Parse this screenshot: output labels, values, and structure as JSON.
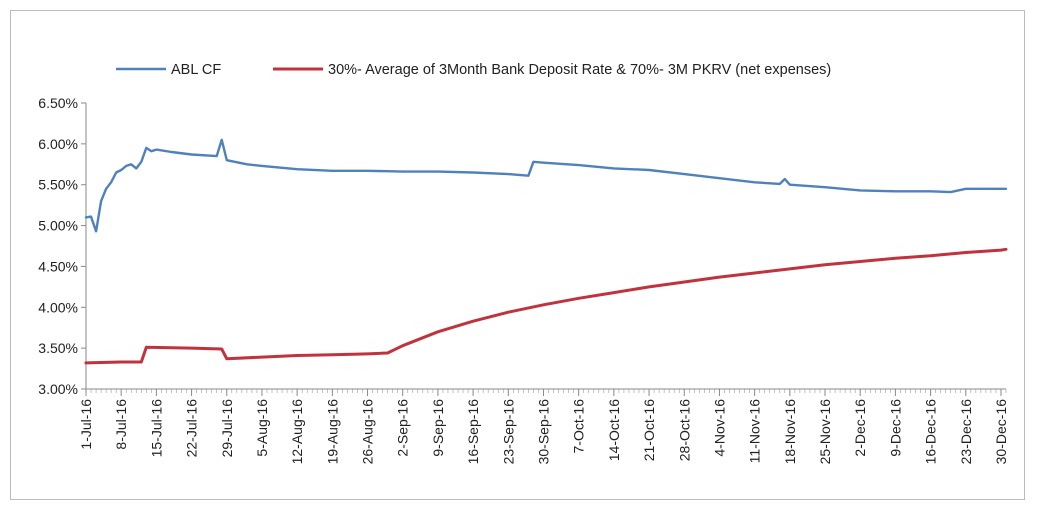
{
  "chart_data": {
    "type": "line",
    "title": "",
    "xlabel": "",
    "ylabel": "",
    "ylim": [
      0.03,
      0.065
    ],
    "y_ticks": [
      "3.00%",
      "3.50%",
      "4.00%",
      "4.50%",
      "5.00%",
      "5.50%",
      "6.00%",
      "6.50%"
    ],
    "x_ticks": [
      "1-Jul-16",
      "8-Jul-16",
      "15-Jul-16",
      "22-Jul-16",
      "29-Jul-16",
      "5-Aug-16",
      "12-Aug-16",
      "19-Aug-16",
      "26-Aug-16",
      "2-Sep-16",
      "9-Sep-16",
      "16-Sep-16",
      "23-Sep-16",
      "30-Sep-16",
      "7-Oct-16",
      "14-Oct-16",
      "21-Oct-16",
      "28-Oct-16",
      "4-Nov-16",
      "11-Nov-16",
      "18-Nov-16",
      "25-Nov-16",
      "2-Dec-16",
      "9-Dec-16",
      "16-Dec-16",
      "23-Dec-16",
      "30-Dec-16"
    ],
    "grid": false,
    "legend_position": "top",
    "series": [
      {
        "name": "ABL CF",
        "color": "#4f81bd",
        "points": [
          [
            "1-Jul-16",
            0.051
          ],
          [
            "2-Jul-16",
            0.0511
          ],
          [
            "3-Jul-16",
            0.0493
          ],
          [
            "4-Jul-16",
            0.053
          ],
          [
            "5-Jul-16",
            0.0545
          ],
          [
            "6-Jul-16",
            0.0553
          ],
          [
            "7-Jul-16",
            0.0565
          ],
          [
            "8-Jul-16",
            0.0568
          ],
          [
            "9-Jul-16",
            0.0573
          ],
          [
            "10-Jul-16",
            0.0575
          ],
          [
            "11-Jul-16",
            0.057
          ],
          [
            "12-Jul-16",
            0.0578
          ],
          [
            "13-Jul-16",
            0.0595
          ],
          [
            "14-Jul-16",
            0.0591
          ],
          [
            "15-Jul-16",
            0.0593
          ],
          [
            "18-Jul-16",
            0.059
          ],
          [
            "22-Jul-16",
            0.0587
          ],
          [
            "27-Jul-16",
            0.0585
          ],
          [
            "28-Jul-16",
            0.0605
          ],
          [
            "29-Jul-16",
            0.058
          ],
          [
            "2-Aug-16",
            0.0575
          ],
          [
            "5-Aug-16",
            0.0573
          ],
          [
            "12-Aug-16",
            0.0569
          ],
          [
            "19-Aug-16",
            0.0567
          ],
          [
            "26-Aug-16",
            0.0567
          ],
          [
            "2-Sep-16",
            0.0566
          ],
          [
            "9-Sep-16",
            0.0566
          ],
          [
            "16-Sep-16",
            0.0565
          ],
          [
            "23-Sep-16",
            0.0563
          ],
          [
            "27-Sep-16",
            0.0561
          ],
          [
            "28-Sep-16",
            0.0578
          ],
          [
            "30-Sep-16",
            0.0577
          ],
          [
            "7-Oct-16",
            0.0574
          ],
          [
            "14-Oct-16",
            0.057
          ],
          [
            "21-Oct-16",
            0.0568
          ],
          [
            "28-Oct-16",
            0.0563
          ],
          [
            "4-Nov-16",
            0.0558
          ],
          [
            "11-Nov-16",
            0.0553
          ],
          [
            "16-Nov-16",
            0.0551
          ],
          [
            "17-Nov-16",
            0.0557
          ],
          [
            "18-Nov-16",
            0.055
          ],
          [
            "25-Nov-16",
            0.0547
          ],
          [
            "2-Dec-16",
            0.0543
          ],
          [
            "9-Dec-16",
            0.0542
          ],
          [
            "16-Dec-16",
            0.0542
          ],
          [
            "20-Dec-16",
            0.0541
          ],
          [
            "23-Dec-16",
            0.0545
          ],
          [
            "30-Dec-16",
            0.0545
          ],
          [
            "31-Dec-16",
            0.0545
          ]
        ]
      },
      {
        "name": "30%- Average of 3Month Bank Deposit Rate & 70%- 3M PKRV (net expenses)",
        "color": "#c0333c",
        "points": [
          [
            "1-Jul-16",
            0.0332
          ],
          [
            "8-Jul-16",
            0.0333
          ],
          [
            "12-Jul-16",
            0.0333
          ],
          [
            "13-Jul-16",
            0.0351
          ],
          [
            "22-Jul-16",
            0.035
          ],
          [
            "28-Jul-16",
            0.0349
          ],
          [
            "29-Jul-16",
            0.0337
          ],
          [
            "5-Aug-16",
            0.0339
          ],
          [
            "12-Aug-16",
            0.0341
          ],
          [
            "19-Aug-16",
            0.0342
          ],
          [
            "26-Aug-16",
            0.0343
          ],
          [
            "30-Aug-16",
            0.0344
          ],
          [
            "2-Sep-16",
            0.0353
          ],
          [
            "9-Sep-16",
            0.037
          ],
          [
            "16-Sep-16",
            0.0383
          ],
          [
            "23-Sep-16",
            0.0394
          ],
          [
            "30-Sep-16",
            0.0403
          ],
          [
            "7-Oct-16",
            0.0411
          ],
          [
            "14-Oct-16",
            0.0418
          ],
          [
            "21-Oct-16",
            0.0425
          ],
          [
            "28-Oct-16",
            0.0431
          ],
          [
            "4-Nov-16",
            0.0437
          ],
          [
            "11-Nov-16",
            0.0442
          ],
          [
            "18-Nov-16",
            0.0447
          ],
          [
            "25-Nov-16",
            0.0452
          ],
          [
            "2-Dec-16",
            0.0456
          ],
          [
            "9-Dec-16",
            0.046
          ],
          [
            "16-Dec-16",
            0.0463
          ],
          [
            "23-Dec-16",
            0.0467
          ],
          [
            "30-Dec-16",
            0.047
          ],
          [
            "31-Dec-16",
            0.0471
          ]
        ]
      }
    ]
  }
}
